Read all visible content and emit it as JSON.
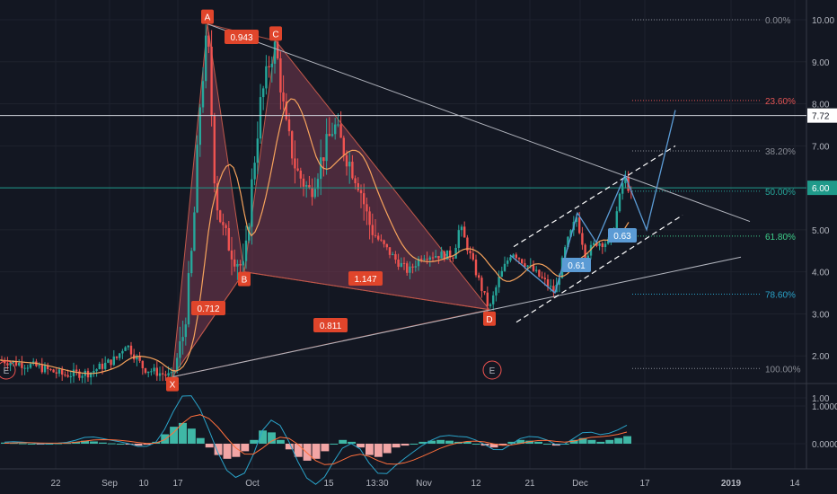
{
  "colors": {
    "background": "#131722",
    "grid": "#1e222d",
    "up": "#26a69a",
    "down": "#ef5350",
    "ma": "#f7a35c",
    "pattern_fill": "#7a3a52",
    "pattern_stroke": "#c0584a",
    "label_red": "#e0452b",
    "label_blue": "#5b9bd5",
    "macd": "#2aa3c9",
    "signal": "#ff6f3c",
    "hist_up": "#3fb7a6",
    "hist_down": "#f2a5a5",
    "trendline": "#b2b5be",
    "horizontal_line": "#d1d4dc",
    "horizontal_teal": "#1f9a8a"
  },
  "chart_data": [
    {
      "type": "candlestick",
      "x_ticks": [
        "22",
        "Sep",
        "10",
        "17",
        "Oct",
        "15",
        "13:30",
        "Nov",
        "12",
        "21",
        "Dec",
        "17",
        "2019",
        "14"
      ],
      "y_ticks": [
        "10.00",
        "9.00",
        "8.00",
        "7.00",
        "6.00",
        "5.00",
        "4.00",
        "3.00",
        "2.00",
        "1.00"
      ],
      "ylim": [
        1.0,
        10.0
      ],
      "price_labels": [
        "7.72",
        "6.00"
      ],
      "harmonic_pattern": {
        "points": [
          {
            "label": "X",
            "value": 1.5
          },
          {
            "label": "A",
            "value": 9.9
          },
          {
            "label": "B",
            "value": 4.0
          },
          {
            "label": "C",
            "value": 9.5
          },
          {
            "label": "D",
            "value": 3.1
          }
        ],
        "ratios": [
          "0.943",
          "0.712",
          "1.147",
          "0.811"
        ]
      },
      "channel_ratios": [
        "0.61",
        "0.63"
      ],
      "fibonacci": [
        {
          "label": "0.00%",
          "value": 10.0,
          "color": "#8a8d96"
        },
        {
          "label": "23.60%",
          "value": 8.08,
          "color": "#e35454"
        },
        {
          "label": "38.20%",
          "value": 6.88,
          "color": "#8a8d96"
        },
        {
          "label": "50.00%",
          "value": 5.92,
          "color": "#26a69a"
        },
        {
          "label": "61.80%",
          "value": 4.85,
          "color": "#3fd08b"
        },
        {
          "label": "78.60%",
          "value": 3.47,
          "color": "#2aa3c9"
        },
        {
          "label": "100.00%",
          "value": 1.7,
          "color": "#8a8d96"
        }
      ],
      "event_markers": [
        "E",
        "E"
      ]
    },
    {
      "type": "bar",
      "y_ticks": [
        "1.0000",
        "0.0000"
      ],
      "series": [
        {
          "values": [
            0.03,
            0.02,
            0.01,
            0.0,
            -0.01,
            0.0,
            0.01,
            0.02,
            0.05,
            0.08,
            0.06,
            0.03,
            0.01,
            0.0,
            -0.02,
            -0.05,
            -0.02,
            0.05,
            0.25,
            0.45,
            0.55,
            0.4,
            0.15,
            -0.1,
            -0.3,
            -0.4,
            -0.35,
            -0.2,
            0.1,
            0.35,
            0.3,
            0.1,
            -0.15,
            -0.35,
            -0.45,
            -0.4,
            -0.2,
            0.0,
            0.1,
            0.05,
            -0.1,
            -0.3,
            -0.35,
            -0.25,
            -0.1,
            -0.05,
            0.0,
            0.05,
            0.08,
            0.1,
            0.08,
            0.05,
            0.05,
            0.0,
            -0.05,
            -0.1,
            -0.05,
            0.05,
            0.1,
            0.08,
            0.05,
            0.0,
            -0.05,
            0.0,
            0.1,
            0.15,
            0.1,
            0.05,
            0.1,
            0.15,
            0.2
          ]
        }
      ]
    }
  ]
}
